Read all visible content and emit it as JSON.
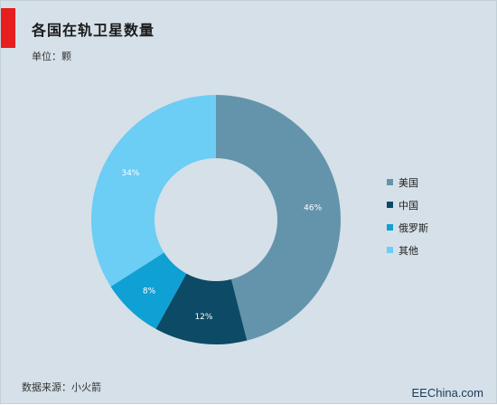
{
  "header": {
    "title": "各国在轨卫星数量",
    "unit": "单位：颗"
  },
  "footer": {
    "source": "数据来源：小火箭",
    "watermark": "EEChina.com"
  },
  "colors": {
    "accent": "#e61e1e",
    "background": "#d5e0e8",
    "series": [
      "#6394ab",
      "#0c4a66",
      "#0fa0d4",
      "#6ccdf5"
    ]
  },
  "chart_data": {
    "type": "pie",
    "subtype": "donut",
    "categories": [
      "美国",
      "中国",
      "俄罗斯",
      "其他"
    ],
    "values": [
      46,
      12,
      8,
      34
    ],
    "labels": [
      "46%",
      "12%",
      "8%",
      "34%"
    ],
    "legend_placement": "right"
  }
}
